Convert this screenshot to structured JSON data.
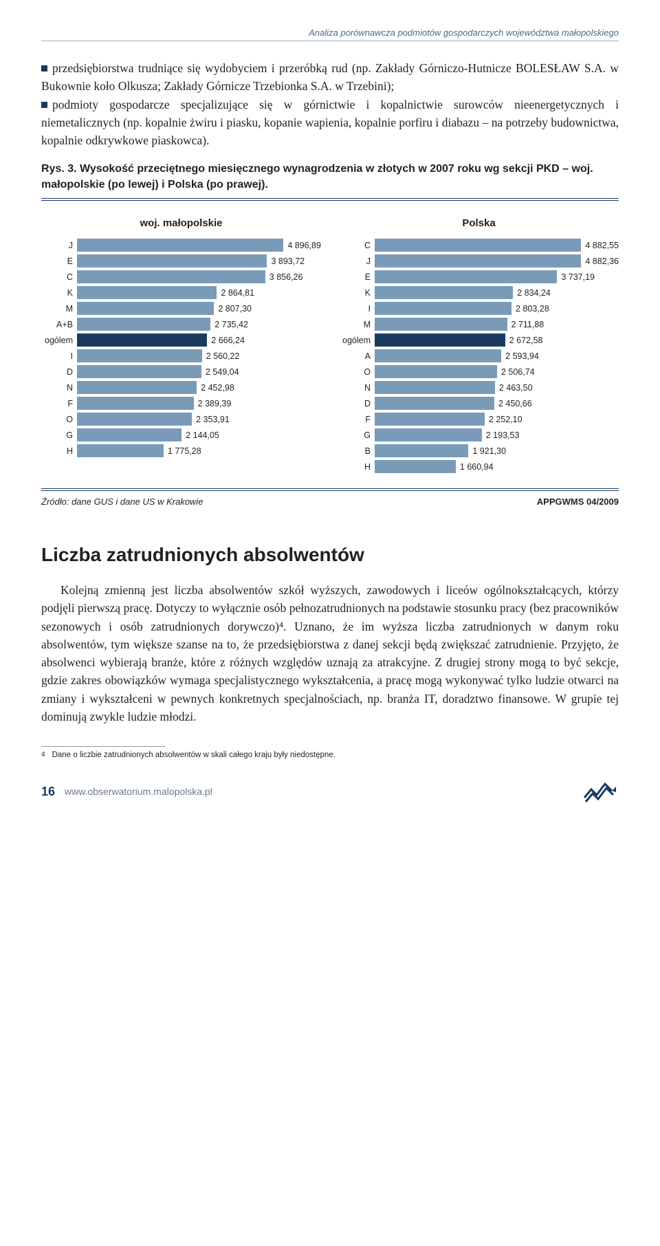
{
  "running_head": "Analiza porównawcza podmiotów gospodarczych województwa małopolskiego",
  "para1_a": "przedsiębiorstwa trudniące się wydobyciem i przeróbką rud (np. Zakłady Górniczo-Hutnicze BOLESŁAW S.A. w Bukownie koło Olkusza; Zakłady Górnicze Trzebionka S.A. w Trzebini);",
  "para1_b": "podmioty gospodarcze specjalizujące się w górnictwie i kopalnictwie surowców nieenergetycznych i niemetalicznych (np. kopalnie żwiru i piasku, kopanie wapienia, kopalnie porfiru i diabazu – na potrzeby budownictwa, kopalnie odkrywkowe piaskowca).",
  "fig_caption": "Rys. 3. Wysokość przeciętnego miesięcznego wynagrodzenia w złotych w 2007 roku wg sekcji PKD – woj. małopolskie (po lewej) i Polska (po prawej).",
  "colors": {
    "bar_default": "#7a9bb8",
    "bar_highlight": "#1a3a60",
    "text": "#231f20"
  },
  "chart_left": {
    "title": "woj. małopolskie",
    "max": 5000,
    "highlight_label": "ogólem",
    "rows": [
      {
        "label": "J",
        "value": "4 896,89",
        "num": 4896.89
      },
      {
        "label": "E",
        "value": "3 893,72",
        "num": 3893.72
      },
      {
        "label": "C",
        "value": "3 856,26",
        "num": 3856.26
      },
      {
        "label": "K",
        "value": "2 864,81",
        "num": 2864.81
      },
      {
        "label": "M",
        "value": "2 807,30",
        "num": 2807.3
      },
      {
        "label": "A+B",
        "value": "2 735,42",
        "num": 2735.42
      },
      {
        "label": "ogólem",
        "value": "2 666,24",
        "num": 2666.24
      },
      {
        "label": "I",
        "value": "2 560,22",
        "num": 2560.22
      },
      {
        "label": "D",
        "value": "2 549,04",
        "num": 2549.04
      },
      {
        "label": "N",
        "value": "2 452,98",
        "num": 2452.98
      },
      {
        "label": "F",
        "value": "2 389,39",
        "num": 2389.39
      },
      {
        "label": "O",
        "value": "2 353,91",
        "num": 2353.91
      },
      {
        "label": "G",
        "value": "2 144,05",
        "num": 2144.05
      },
      {
        "label": "H",
        "value": "1 775,28",
        "num": 1775.28
      }
    ]
  },
  "chart_right": {
    "title": "Polska",
    "max": 5000,
    "highlight_label": "ogólem",
    "rows": [
      {
        "label": "C",
        "value": "4 882,55",
        "num": 4882.55
      },
      {
        "label": "J",
        "value": "4 882,36",
        "num": 4882.36
      },
      {
        "label": "E",
        "value": "3 737,19",
        "num": 3737.19
      },
      {
        "label": "K",
        "value": "2 834,24",
        "num": 2834.24
      },
      {
        "label": "I",
        "value": "2 803,28",
        "num": 2803.28
      },
      {
        "label": "M",
        "value": "2 711,88",
        "num": 2711.88
      },
      {
        "label": "ogólem",
        "value": "2 672,58",
        "num": 2672.58
      },
      {
        "label": "A",
        "value": "2 593,94",
        "num": 2593.94
      },
      {
        "label": "O",
        "value": "2 506,74",
        "num": 2506.74
      },
      {
        "label": "N",
        "value": "2 463,50",
        "num": 2463.5
      },
      {
        "label": "D",
        "value": "2 450,66",
        "num": 2450.66
      },
      {
        "label": "F",
        "value": "2 252,10",
        "num": 2252.1
      },
      {
        "label": "G",
        "value": "2 193,53",
        "num": 2193.53
      },
      {
        "label": "B",
        "value": "1 921,30",
        "num": 1921.3
      },
      {
        "label": "H",
        "value": "1 660,94",
        "num": 1660.94
      }
    ]
  },
  "source_left": "Źródło: dane GUS i dane US w Krakowie",
  "source_right": "APPGWMS 04/2009",
  "section_heading": "Liczba zatrudnionych absolwentów",
  "para2": "Kolejną zmienną jest liczba absolwentów szkół wyższych, zawodowych i liceów ogólnokształcących, którzy podjęli pierwszą pracę. Dotyczy to wyłącznie osób pełnozatrudnionych na podstawie stosunku pracy (bez pracowników sezonowych i osób zatrudnionych dorywczo)⁴. Uznano, że im wyższa liczba zatrudnionych w danym roku absolwentów, tym większe szanse na to, że przedsiębiorstwa z danej sekcji będą zwiększać zatrudnienie. Przyjęto, że absolwenci wybierają branże, które z różnych względów uznają za atrakcyjne. Z drugiej strony mogą to być sekcje, gdzie zakres obowiązków wymaga specjalistycznego wykształcenia, a pracę mogą wykonywać tylko ludzie otwarci na zmiany i wykształceni w pewnych konkretnych specjalnościach, np. branża IT, doradztwo finansowe. W grupie tej dominują zwykle ludzie młodzi.",
  "footnote_num": "4",
  "footnote_text": "Dane o liczbie zatrudnionych absolwentów w skali całego kraju były niedostępne.",
  "page_num": "16",
  "footer_url": "www.obserwatorium.malopolska.pl"
}
